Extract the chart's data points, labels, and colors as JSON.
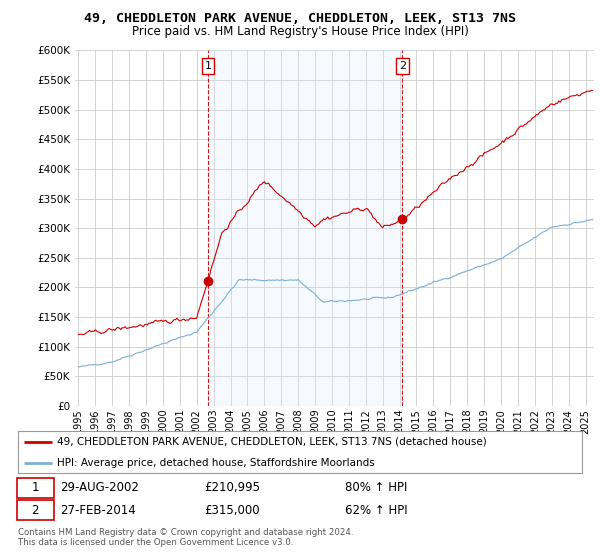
{
  "title": "49, CHEDDLETON PARK AVENUE, CHEDDLETON, LEEK, ST13 7NS",
  "subtitle": "Price paid vs. HM Land Registry's House Price Index (HPI)",
  "ylim": [
    0,
    600000
  ],
  "yticks": [
    0,
    50000,
    100000,
    150000,
    200000,
    250000,
    300000,
    350000,
    400000,
    450000,
    500000,
    550000,
    600000
  ],
  "xlim_start": 1994.8,
  "xlim_end": 2025.5,
  "sale1_date": 2002.66,
  "sale1_price": 210995,
  "sale2_date": 2014.16,
  "sale2_price": 315000,
  "legend_line1": "49, CHEDDLETON PARK AVENUE, CHEDDLETON, LEEK, ST13 7NS (detached house)",
  "legend_line2": "HPI: Average price, detached house, Staffordshire Moorlands",
  "footer": "Contains HM Land Registry data © Crown copyright and database right 2024.\nThis data is licensed under the Open Government Licence v3.0.",
  "line_color_red": "#cc0000",
  "line_color_blue": "#7bafd4",
  "shade_color": "#ddeeff",
  "vline_color": "#cc0000",
  "background_color": "#ffffff",
  "grid_color": "#cccccc"
}
